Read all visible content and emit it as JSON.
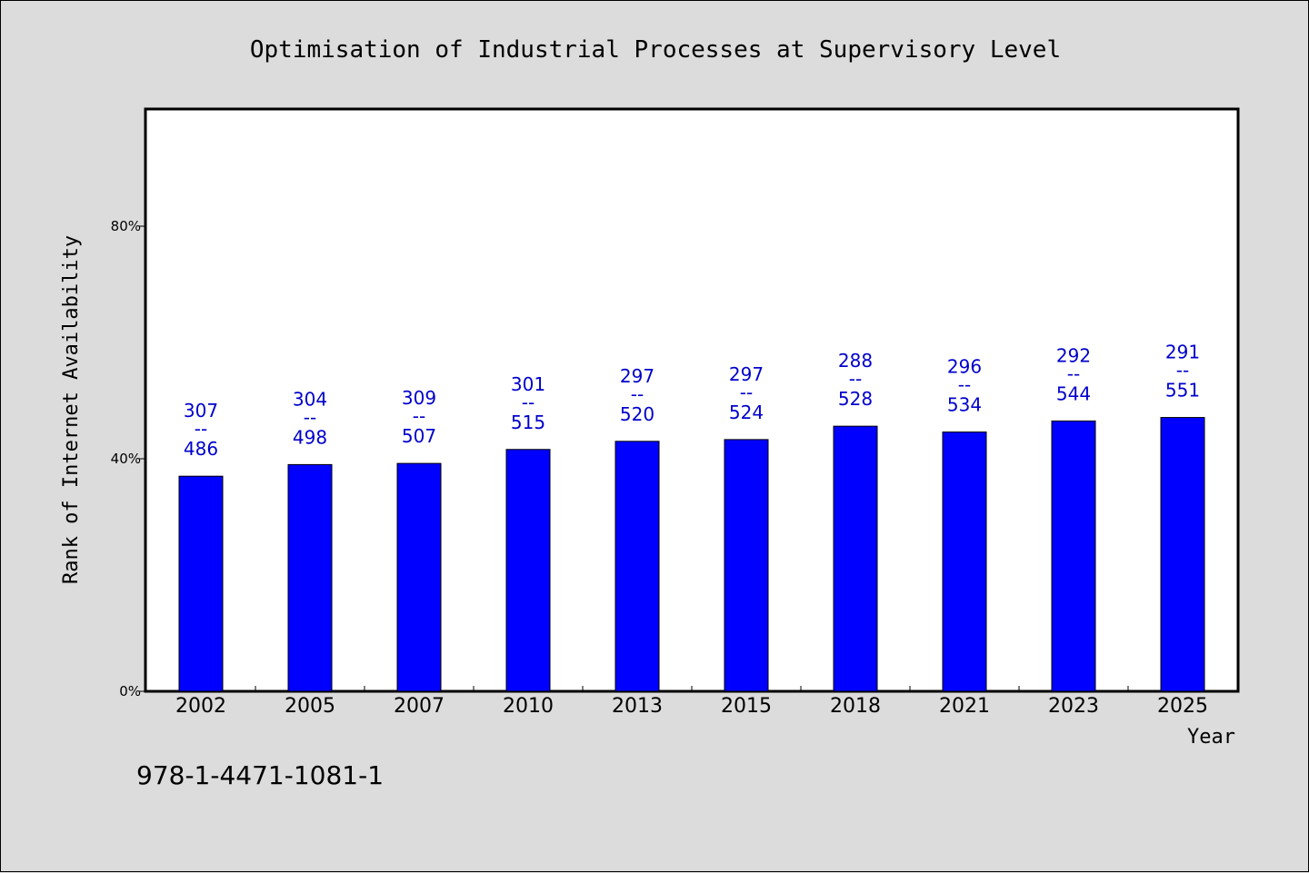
{
  "chart_data": {
    "type": "bar",
    "title": "Optimisation of Industrial Processes at Supervisory Level",
    "xlabel": "Year",
    "ylabel": "Rank of Internet Availability",
    "categories": [
      "2002",
      "2005",
      "2007",
      "2010",
      "2013",
      "2015",
      "2018",
      "2021",
      "2023",
      "2025"
    ],
    "values": [
      37,
      39,
      39.2,
      41.6,
      43,
      43.3,
      45.6,
      44.6,
      46.5,
      47.1
    ],
    "labels_top": [
      "307",
      "304",
      "309",
      "301",
      "297",
      "297",
      "288",
      "296",
      "292",
      "291"
    ],
    "labels_bottom": [
      "486",
      "498",
      "507",
      "515",
      "520",
      "524",
      "528",
      "534",
      "544",
      "551"
    ],
    "label_separator": "--",
    "yticks": [
      0,
      40,
      80
    ],
    "ytick_labels": [
      "0%",
      "40%",
      "80%"
    ],
    "ylim": [
      0,
      100
    ],
    "grid": false,
    "legend": "none",
    "colors": {
      "bar": "#0000ff",
      "data_label": "#0000cc",
      "plot_bg": "#ffffff",
      "page_bg": "#dcdcdc"
    }
  },
  "footnote": "978-1-4471-1081-1"
}
